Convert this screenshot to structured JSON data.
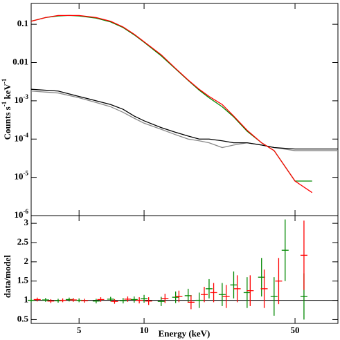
{
  "chart_data": [
    {
      "type": "line",
      "xlog": true,
      "ylog": true,
      "ylabel": [
        "Counts s",
        "-1",
        " keV",
        "-1"
      ],
      "xlim": [
        3,
        79
      ],
      "ylim": [
        1e-06,
        0.35
      ],
      "xticks": [
        5,
        10,
        50
      ],
      "yticks": [
        0.1,
        0.01,
        {
          "value": 0.001,
          "label": "10",
          "sup": "-3"
        },
        {
          "value": 0.0001,
          "label": "10",
          "sup": "-4"
        },
        {
          "value": 1e-05,
          "label": "10",
          "sup": "-5"
        },
        {
          "value": 1e-06,
          "label": "10",
          "sup": "-6"
        }
      ],
      "series": [
        {
          "color": "#888888",
          "x": [
            3,
            4,
            5,
            6,
            7,
            8,
            9,
            10,
            12,
            14,
            16,
            18,
            20,
            23,
            26,
            30,
            35,
            40,
            50,
            60,
            79
          ],
          "values": [
            0.0018,
            0.0016,
            0.0012,
            0.0009,
            0.0007,
            0.0005,
            0.00035,
            0.00026,
            0.00018,
            0.00013,
            0.0001,
            9e-05,
            8e-05,
            6e-05,
            7e-05,
            8e-05,
            7e-05,
            6e-05,
            5e-05,
            5e-05,
            5e-05
          ]
        },
        {
          "color": "#000000",
          "x": [
            3,
            4,
            5,
            6,
            7,
            8,
            9,
            10,
            12,
            14,
            16,
            18,
            20,
            23,
            26,
            30,
            35,
            40,
            50,
            60,
            79
          ],
          "values": [
            0.002,
            0.0018,
            0.0013,
            0.001,
            0.0008,
            0.0006,
            0.0004,
            0.0003,
            0.0002,
            0.00015,
            0.00012,
            0.0001,
            0.0001,
            9e-05,
            8e-05,
            8e-05,
            7e-05,
            6e-05,
            5.5e-05,
            5.5e-05,
            5.5e-05
          ]
        },
        {
          "color": "#008800",
          "x": [
            3,
            3.5,
            4,
            4.5,
            5,
            6,
            7,
            8,
            9,
            10,
            12,
            14,
            16,
            18,
            20,
            23,
            26,
            30,
            35,
            40,
            50,
            60
          ],
          "values": [
            0.12,
            0.15,
            0.165,
            0.17,
            0.165,
            0.145,
            0.115,
            0.082,
            0.053,
            0.034,
            0.015,
            0.0068,
            0.0034,
            0.0019,
            0.0012,
            0.0007,
            0.00038,
            0.00016,
            8e-05,
            5e-05,
            8e-06,
            8e-06
          ]
        },
        {
          "color": "#ff0000",
          "x": [
            3,
            3.5,
            4,
            4.5,
            5,
            6,
            7,
            8,
            9,
            10,
            12,
            14,
            16,
            18,
            20,
            23,
            26,
            30,
            35,
            40,
            50,
            60
          ],
          "values": [
            0.12,
            0.15,
            0.17,
            0.17,
            0.17,
            0.15,
            0.12,
            0.085,
            0.055,
            0.035,
            0.016,
            0.007,
            0.0035,
            0.002,
            0.0013,
            0.0008,
            0.0004,
            0.00017,
            8e-05,
            5e-05,
            8e-06,
            4e-06
          ]
        }
      ]
    },
    {
      "type": "errorbar",
      "xlog": true,
      "xlabel": "Energy (keV)",
      "ylabel": "data/model",
      "xlim": [
        3,
        79
      ],
      "ylim": [
        0.4,
        3.2
      ],
      "xticks": [
        5,
        10,
        50
      ],
      "yticks": [
        0.5,
        1,
        1.5,
        2,
        2.5,
        3
      ],
      "reference_line": 1,
      "series": [
        {
          "color": "#008800",
          "x": [
            3,
            3.5,
            4,
            4.5,
            5,
            6,
            7,
            8,
            9,
            10,
            12,
            14,
            16,
            18,
            20,
            23,
            26,
            30,
            35,
            40,
            45,
            55
          ],
          "values": [
            1.0,
            1.01,
            0.99,
            1.02,
            1.0,
            0.98,
            1.03,
            0.99,
            1.02,
            1.04,
            0.97,
            1.08,
            1.12,
            1.0,
            1.3,
            1.15,
            1.4,
            1.2,
            1.6,
            1.1,
            2.3,
            1.1
          ],
          "errors": [
            0.05,
            0.05,
            0.05,
            0.05,
            0.05,
            0.06,
            0.06,
            0.07,
            0.08,
            0.1,
            0.12,
            0.15,
            0.18,
            0.2,
            0.25,
            0.3,
            0.35,
            0.4,
            0.5,
            0.5,
            0.8,
            0.6
          ]
        },
        {
          "color": "#ff0000",
          "x": [
            3.2,
            3.7,
            4.2,
            4.7,
            5.3,
            6.3,
            7.3,
            8.4,
            9.5,
            10.5,
            12.5,
            14.5,
            16.5,
            19,
            21,
            24,
            27,
            31,
            36,
            42,
            55
          ],
          "values": [
            1.02,
            0.98,
            1.0,
            1.01,
            0.99,
            1.02,
            0.97,
            1.03,
            1.0,
            0.98,
            1.05,
            1.1,
            0.95,
            1.15,
            1.2,
            1.1,
            1.3,
            1.25,
            1.3,
            1.5,
            2.17
          ],
          "errors": [
            0.05,
            0.05,
            0.05,
            0.05,
            0.05,
            0.06,
            0.06,
            0.07,
            0.08,
            0.1,
            0.12,
            0.15,
            0.18,
            0.2,
            0.25,
            0.3,
            0.35,
            0.4,
            0.5,
            0.6,
            0.9
          ]
        }
      ]
    }
  ]
}
